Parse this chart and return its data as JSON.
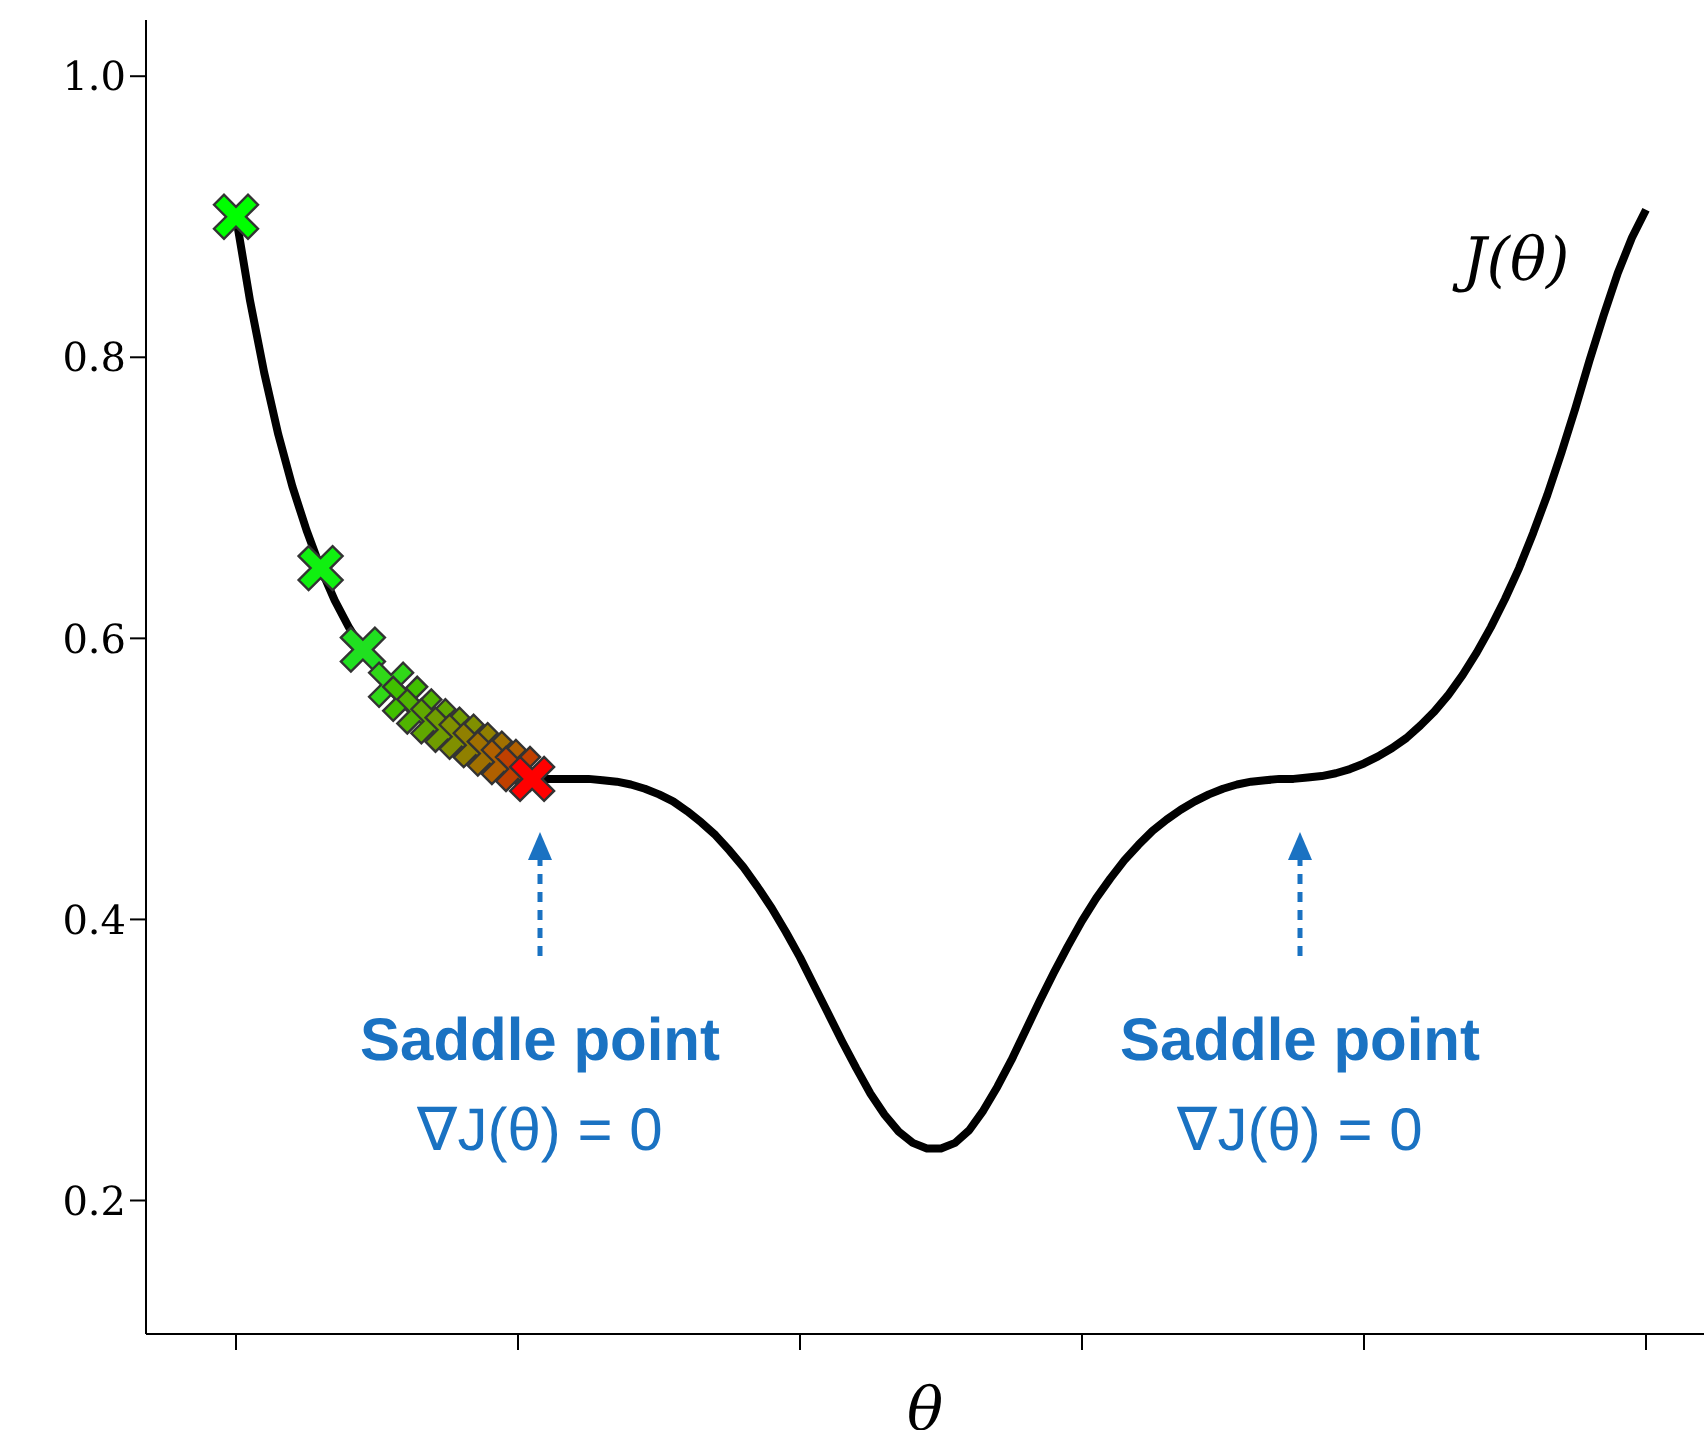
{
  "chart_data": {
    "type": "line",
    "xlabel": "θ",
    "categories": [
      null,
      null,
      null,
      null,
      null,
      null,
      null,
      null,
      null,
      null,
      null,
      null,
      null,
      null,
      null,
      null,
      null,
      null,
      null,
      null,
      null,
      null,
      null,
      null,
      null,
      null,
      null,
      null,
      null,
      null,
      null,
      null,
      null,
      null,
      null,
      null,
      null,
      null,
      null,
      null,
      null,
      null,
      null,
      null,
      null,
      null,
      null,
      null,
      null,
      null,
      null,
      null,
      null,
      null,
      null,
      null,
      null,
      null,
      null,
      null,
      null,
      null,
      null,
      null,
      null,
      null,
      null,
      null,
      null,
      null,
      null,
      null,
      null,
      null,
      null,
      null,
      null,
      null,
      null,
      null,
      null,
      null,
      null,
      null,
      null,
      null,
      null,
      null,
      null,
      null,
      null,
      null,
      null,
      null,
      null,
      null,
      null,
      null,
      null,
      null,
      null
    ],
    "series": [
      {
        "name": "J(θ)",
        "color": "#000000",
        "values": [
          0.9,
          0.84,
          0.789,
          0.745,
          0.708,
          0.677,
          0.65,
          0.627,
          0.608,
          0.592,
          0.578,
          0.567,
          0.557,
          0.548,
          0.541,
          0.535,
          0.53,
          0.524,
          0.518,
          0.512,
          0.507,
          0.503,
          0.5,
          0.5,
          0.5,
          0.5,
          0.499,
          0.498,
          0.496,
          0.493,
          0.489,
          0.484,
          0.477,
          0.469,
          0.46,
          0.449,
          0.437,
          0.423,
          0.408,
          0.391,
          0.373,
          0.353,
          0.333,
          0.313,
          0.294,
          0.276,
          0.261,
          0.249,
          0.241,
          0.237,
          0.237,
          0.241,
          0.25,
          0.264,
          0.281,
          0.3,
          0.321,
          0.342,
          0.362,
          0.381,
          0.399,
          0.415,
          0.429,
          0.442,
          0.453,
          0.463,
          0.471,
          0.478,
          0.484,
          0.489,
          0.493,
          0.496,
          0.498,
          0.499,
          0.5,
          0.5,
          0.501,
          0.502,
          0.504,
          0.507,
          0.511,
          0.516,
          0.522,
          0.529,
          0.538,
          0.548,
          0.56,
          0.574,
          0.59,
          0.608,
          0.628,
          0.65,
          0.675,
          0.702,
          0.732,
          0.764,
          0.798,
          0.83,
          0.86,
          0.885,
          0.905
        ]
      },
      {
        "type": "scatter",
        "marker": "cross",
        "values": [
          0.9,
          null,
          null,
          null,
          null,
          null,
          0.65,
          null,
          null,
          0.592,
          null,
          0.567,
          0.557,
          0.548,
          0.541,
          0.535,
          0.53,
          0.524,
          0.518,
          0.512,
          0.507,
          0.5,
          null,
          null,
          null,
          null,
          null,
          null,
          null,
          null,
          null,
          null,
          null,
          null,
          null,
          null,
          null,
          null,
          null,
          null,
          null,
          null,
          null,
          null,
          null,
          null,
          null,
          null,
          null,
          null,
          null,
          null,
          null,
          null,
          null,
          null,
          null,
          null,
          null,
          null,
          null,
          null,
          null,
          null,
          null,
          null,
          null,
          null,
          null,
          null,
          null,
          null,
          null,
          null,
          null,
          null,
          null,
          null,
          null,
          null,
          null,
          null,
          null,
          null,
          null,
          null,
          null,
          null,
          null,
          null,
          null,
          null,
          null,
          null,
          null,
          null,
          null,
          null,
          null,
          null,
          null
        ],
        "colors": [
          "#00ff00",
          null,
          null,
          null,
          null,
          null,
          "#10f010",
          null,
          null,
          "#20e020",
          null,
          "#30d818",
          "#40c000",
          "#50b400",
          "#60a800",
          "#709c00",
          "#809000",
          "#908000",
          "#a07000",
          "#b06000",
          "#c04000",
          "#ff0000",
          null,
          null,
          null,
          null,
          null,
          null,
          null,
          null,
          null,
          null,
          null,
          null,
          null,
          null,
          null,
          null,
          null,
          null,
          null,
          null,
          null,
          null,
          null,
          null,
          null,
          null,
          null,
          null,
          null,
          null,
          null,
          null,
          null,
          null,
          null,
          null,
          null,
          null,
          null,
          null,
          null,
          null,
          null,
          null,
          null,
          null,
          null,
          null,
          null,
          null,
          null,
          null,
          null,
          null,
          null,
          null,
          null,
          null,
          null,
          null,
          null,
          null,
          null,
          null,
          null,
          null,
          null,
          null,
          null,
          null,
          null,
          null,
          null,
          null,
          null,
          null,
          null,
          null,
          null
        ]
      }
    ],
    "ylim": [
      0.105,
      1.04
    ],
    "yticks": [
      0.2,
      0.4,
      0.6,
      0.8,
      {
        "value": 1,
        "label": "1.0"
      }
    ],
    "grid": false,
    "annotations": [
      "Saddle point",
      "∇J(θ) = 0",
      "Saddle point",
      "∇J(θ) = 0"
    ]
  }
}
